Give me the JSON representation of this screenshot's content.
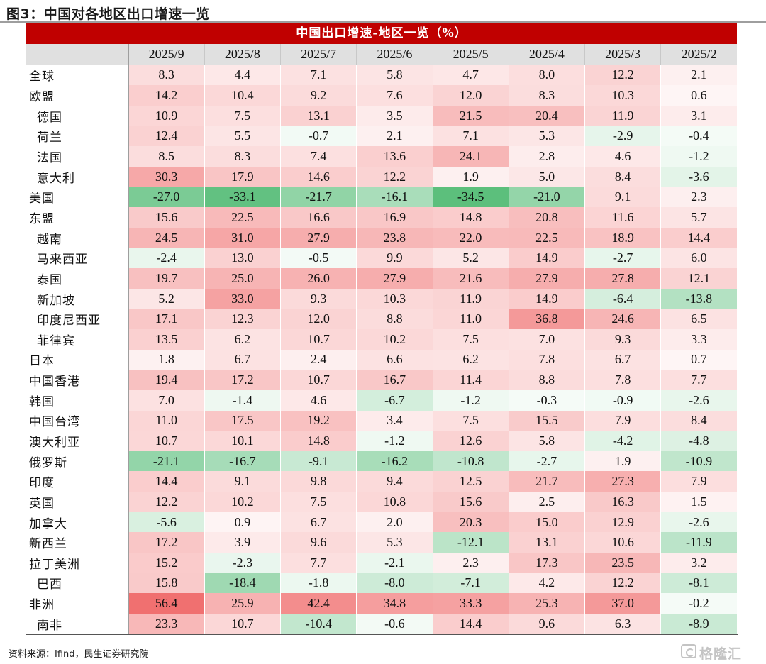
{
  "figure": {
    "title": "图3：中国对各地区出口增速一览",
    "banner": "中国出口增速-地区一览（%）",
    "source": "资料来源：Ifind，民生证券研究院",
    "watermark": "格隆汇"
  },
  "colors": {
    "banner_bg": "#c00000",
    "header_bg": "#e0e0e0",
    "positive_max": "#f07070",
    "negative_max": "#5cbf7c"
  },
  "table": {
    "columns": [
      "2025/9",
      "2025/8",
      "2025/7",
      "2025/6",
      "2025/5",
      "2025/4",
      "2025/3",
      "2025/2"
    ],
    "rows": [
      {
        "label": "全球",
        "indent": false,
        "values": [
          "8.3",
          "4.4",
          "7.1",
          "5.8",
          "4.7",
          "8.0",
          "12.2",
          "2.1"
        ]
      },
      {
        "label": "欧盟",
        "indent": false,
        "values": [
          "14.2",
          "10.4",
          "9.2",
          "7.6",
          "12.0",
          "8.3",
          "10.3",
          "0.6"
        ]
      },
      {
        "label": "德国",
        "indent": true,
        "values": [
          "10.9",
          "7.5",
          "13.1",
          "3.5",
          "21.5",
          "20.4",
          "11.9",
          "3.1"
        ]
      },
      {
        "label": "荷兰",
        "indent": true,
        "values": [
          "12.4",
          "5.5",
          "-0.7",
          "2.1",
          "7.1",
          "5.3",
          "-2.9",
          "-0.4"
        ]
      },
      {
        "label": "法国",
        "indent": true,
        "values": [
          "8.5",
          "8.3",
          "7.4",
          "13.6",
          "24.1",
          "2.8",
          "4.6",
          "-1.2"
        ]
      },
      {
        "label": "意大利",
        "indent": true,
        "values": [
          "30.3",
          "17.9",
          "14.6",
          "12.2",
          "1.9",
          "5.0",
          "8.4",
          "-3.6"
        ]
      },
      {
        "label": "美国",
        "indent": false,
        "values": [
          "-27.0",
          "-33.1",
          "-21.7",
          "-16.1",
          "-34.5",
          "-21.0",
          "9.1",
          "2.3"
        ]
      },
      {
        "label": "东盟",
        "indent": false,
        "values": [
          "15.6",
          "22.5",
          "16.6",
          "16.9",
          "14.8",
          "20.8",
          "11.6",
          "5.7"
        ]
      },
      {
        "label": "越南",
        "indent": true,
        "values": [
          "24.5",
          "31.0",
          "27.9",
          "23.8",
          "22.0",
          "22.5",
          "18.9",
          "14.4"
        ]
      },
      {
        "label": "马来西亚",
        "indent": true,
        "values": [
          "-2.4",
          "13.0",
          "-0.5",
          "9.9",
          "5.2",
          "14.9",
          "-2.7",
          "6.0"
        ]
      },
      {
        "label": "泰国",
        "indent": true,
        "values": [
          "19.7",
          "25.0",
          "26.0",
          "27.9",
          "21.6",
          "27.9",
          "27.8",
          "12.1"
        ]
      },
      {
        "label": "新加坡",
        "indent": true,
        "values": [
          "5.2",
          "33.0",
          "9.3",
          "10.3",
          "11.9",
          "14.9",
          "-6.4",
          "-13.8"
        ]
      },
      {
        "label": "印度尼西亚",
        "indent": true,
        "values": [
          "17.1",
          "12.3",
          "12.0",
          "8.8",
          "11.0",
          "36.8",
          "24.6",
          "6.5"
        ]
      },
      {
        "label": "菲律宾",
        "indent": true,
        "values": [
          "13.5",
          "6.2",
          "10.7",
          "10.2",
          "7.5",
          "7.0",
          "9.3",
          "3.3"
        ]
      },
      {
        "label": "日本",
        "indent": false,
        "values": [
          "1.8",
          "6.7",
          "2.4",
          "6.6",
          "6.2",
          "7.8",
          "6.7",
          "0.7"
        ]
      },
      {
        "label": "中国香港",
        "indent": false,
        "values": [
          "19.4",
          "17.2",
          "10.7",
          "16.7",
          "11.4",
          "8.8",
          "7.8",
          "7.7"
        ]
      },
      {
        "label": "韩国",
        "indent": false,
        "values": [
          "7.0",
          "-1.4",
          "4.6",
          "-6.7",
          "-1.2",
          "-0.3",
          "-0.9",
          "-2.6"
        ]
      },
      {
        "label": "中国台湾",
        "indent": false,
        "values": [
          "11.0",
          "17.5",
          "19.2",
          "3.4",
          "7.5",
          "15.5",
          "7.9",
          "8.4"
        ]
      },
      {
        "label": "澳大利亚",
        "indent": false,
        "values": [
          "10.7",
          "10.1",
          "14.8",
          "-1.2",
          "12.6",
          "5.8",
          "-4.2",
          "-4.8"
        ]
      },
      {
        "label": "俄罗斯",
        "indent": false,
        "values": [
          "-21.1",
          "-16.7",
          "-9.1",
          "-16.2",
          "-10.8",
          "-2.7",
          "1.9",
          "-10.9"
        ]
      },
      {
        "label": "印度",
        "indent": false,
        "values": [
          "14.4",
          "9.1",
          "9.8",
          "9.4",
          "12.5",
          "21.7",
          "27.3",
          "7.9"
        ]
      },
      {
        "label": "英国",
        "indent": false,
        "values": [
          "12.2",
          "10.2",
          "7.5",
          "10.8",
          "15.6",
          "2.5",
          "16.3",
          "1.5"
        ]
      },
      {
        "label": "加拿大",
        "indent": false,
        "values": [
          "-5.6",
          "0.9",
          "6.7",
          "2.0",
          "20.3",
          "15.0",
          "12.9",
          "-2.6"
        ]
      },
      {
        "label": "新西兰",
        "indent": false,
        "values": [
          "17.2",
          "3.9",
          "9.6",
          "5.3",
          "-12.1",
          "13.1",
          "10.6",
          "-11.9"
        ]
      },
      {
        "label": "拉丁美洲",
        "indent": false,
        "values": [
          "15.2",
          "-2.3",
          "7.7",
          "-2.1",
          "2.3",
          "17.3",
          "23.5",
          "3.2"
        ]
      },
      {
        "label": "巴西",
        "indent": true,
        "values": [
          "15.8",
          "-18.4",
          "-1.8",
          "-8.0",
          "-7.1",
          "4.2",
          "12.2",
          "-8.1"
        ]
      },
      {
        "label": "非洲",
        "indent": false,
        "values": [
          "56.4",
          "25.9",
          "42.4",
          "34.8",
          "33.3",
          "25.3",
          "37.0",
          "-0.2"
        ]
      },
      {
        "label": "南非",
        "indent": true,
        "values": [
          "23.3",
          "10.7",
          "-10.4",
          "-0.6",
          "14.4",
          "9.6",
          "6.3",
          "-8.9"
        ]
      }
    ]
  }
}
